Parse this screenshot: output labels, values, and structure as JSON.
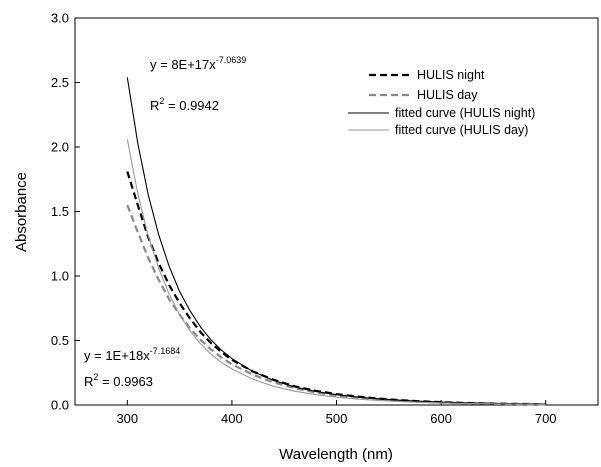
{
  "chart_data": {
    "type": "line",
    "title": "",
    "xlabel": "Wavelength (nm)",
    "ylabel": "Absorbance",
    "xlim": [
      250,
      750
    ],
    "ylim": [
      0.0,
      3.0
    ],
    "x_ticks": [
      "300",
      "400",
      "500",
      "600",
      "700"
    ],
    "x_tick_values": [
      300,
      400,
      500,
      600,
      700
    ],
    "y_ticks": [
      "0.0",
      "0.5",
      "1.0",
      "1.5",
      "2.0",
      "2.5",
      "3.0"
    ],
    "y_tick_values": [
      0.0,
      0.5,
      1.0,
      1.5,
      2.0,
      2.5,
      3.0
    ],
    "grid": false,
    "legend_position": "top-right",
    "x": [
      300,
      310,
      320,
      330,
      340,
      350,
      360,
      370,
      380,
      390,
      400,
      420,
      440,
      460,
      480,
      500,
      520,
      540,
      560,
      580,
      600,
      620,
      640,
      660,
      680,
      700
    ],
    "series": [
      {
        "name": "HULIS night",
        "style": "dashed",
        "color": "#000000",
        "values": [
          1.81,
          1.55,
          1.3,
          1.1,
          0.93,
          0.79,
          0.67,
          0.565,
          0.48,
          0.41,
          0.35,
          0.26,
          0.195,
          0.145,
          0.11,
          0.085,
          0.065,
          0.05,
          0.038,
          0.029,
          0.022,
          0.017,
          0.013,
          0.01,
          0.008,
          0.006
        ]
      },
      {
        "name": "HULIS day",
        "style": "dashed",
        "color": "#888888",
        "values": [
          1.55,
          1.34,
          1.14,
          0.97,
          0.82,
          0.7,
          0.595,
          0.505,
          0.43,
          0.37,
          0.315,
          0.235,
          0.175,
          0.13,
          0.097,
          0.073,
          0.055,
          0.042,
          0.032,
          0.024,
          0.018,
          0.014,
          0.011,
          0.008,
          0.006,
          0.005
        ]
      },
      {
        "name": "fitted curve (HULIS night)",
        "style": "solid",
        "color": "#000000",
        "values": [
          2.54,
          2.03,
          1.63,
          1.32,
          1.075,
          0.88,
          0.73,
          0.605,
          0.505,
          0.425,
          0.36,
          0.26,
          0.19,
          0.14,
          0.105,
          0.08,
          0.062,
          0.048,
          0.037,
          0.029,
          0.023,
          0.018,
          0.014,
          0.011,
          0.009,
          0.007
        ]
      },
      {
        "name": "fitted curve (HULIS day)",
        "style": "solid",
        "color": "#999999",
        "values": [
          2.06,
          1.64,
          1.31,
          1.06,
          0.86,
          0.7,
          0.575,
          0.475,
          0.395,
          0.33,
          0.28,
          0.2,
          0.145,
          0.107,
          0.08,
          0.06,
          0.046,
          0.035,
          0.027,
          0.021,
          0.016,
          0.013,
          0.01,
          0.008,
          0.006,
          0.005
        ]
      }
    ],
    "annotations": [
      {
        "id": "night",
        "base": "y = 8E+17x",
        "exp": "-7.0639",
        "r2_base": "R",
        "r2_exp": "2",
        "r2_value": " = 0.9942"
      },
      {
        "id": "day",
        "base": "y = 1E+18x",
        "exp": "-7.1684",
        "r2_base": "R",
        "r2_exp": "2",
        "r2_value": " = 0.9963"
      }
    ]
  }
}
